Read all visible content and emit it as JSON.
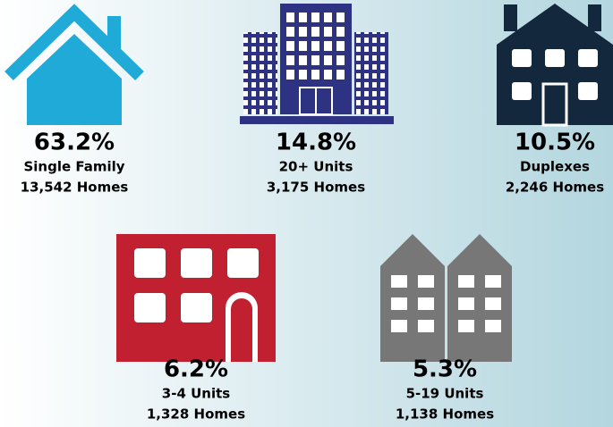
{
  "items": [
    {
      "percent": "63.2%",
      "label": "Single Family",
      "homes": "13,542 Homes"
    },
    {
      "percent": "14.8%",
      "label": "20+ Units",
      "homes": "3,175 Homes"
    },
    {
      "percent": "10.5%",
      "label": "Duplexes",
      "homes": "2,246 Homes"
    },
    {
      "percent": "6.2%",
      "label": "3-4 Units",
      "homes": "1,328 Homes"
    },
    {
      "percent": "5.3%",
      "label": "5-19 Units",
      "homes": "1,138 Homes"
    }
  ]
}
